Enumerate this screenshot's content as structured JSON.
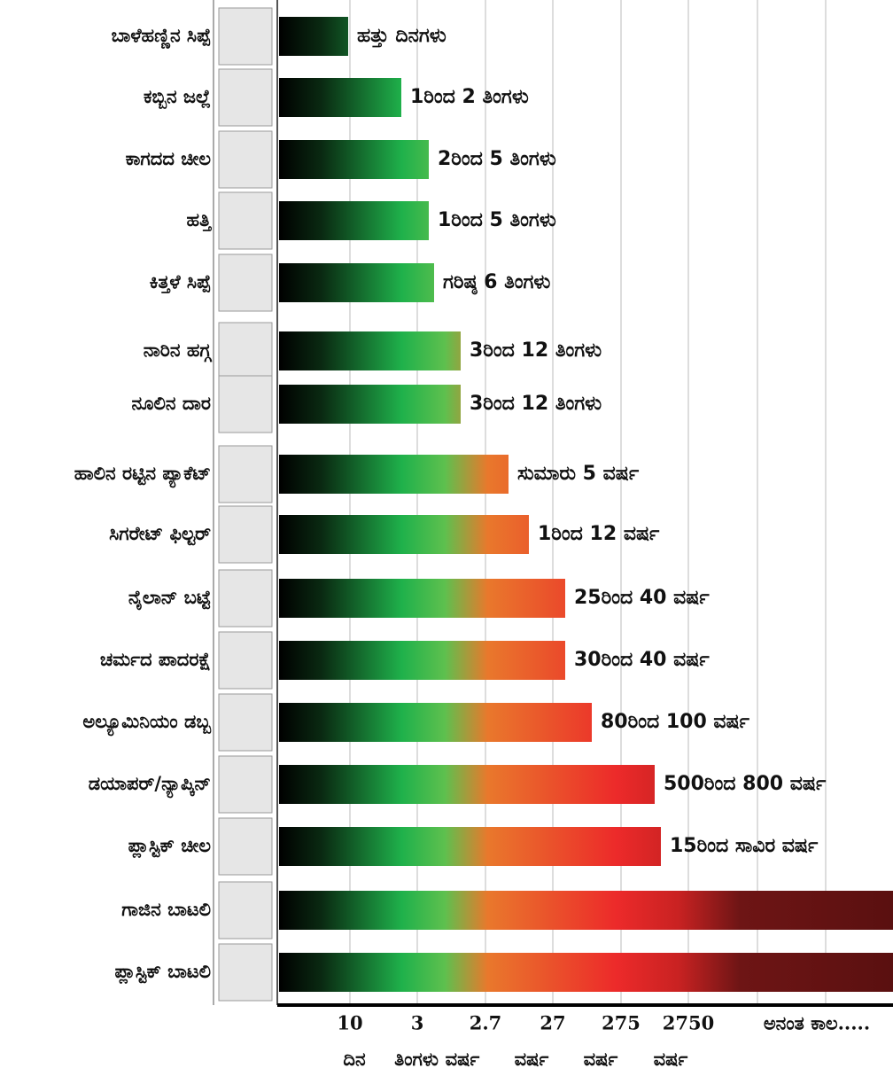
{
  "rows": [
    {
      "label": "ಬಾಳೆಹಣ್ಣಿನ ಸಿಪ್ಪೆ",
      "duration": "ಹತ್ತು ದಿನಗಳು"
    },
    {
      "label": "ಕಬ್ಬಿನ ಜಲ್ಲೆ",
      "duration": "1ರಿಂದ 2 ತಿಂಗಳು"
    },
    {
      "label": "ಕಾಗದದ ಚೀಲ",
      "duration": "2ರಿಂದ 5 ತಿಂಗಳು"
    },
    {
      "label": "ಹತ್ತಿ",
      "duration": "1ರಿಂದ 5 ತಿಂಗಳು"
    },
    {
      "label": "ಕಿತ್ತಳೆ ಸಿಪ್ಪೆ",
      "duration": "ಗರಿಷ್ಠ 6 ತಿಂಗಳು"
    },
    {
      "label": "ನಾರಿನ ಹಗ್ಗ",
      "duration": "3ರಿಂದ 12 ತಿಂಗಳು"
    },
    {
      "label": "ನೂಲಿನ ದಾರ",
      "duration": "3ರಿಂದ 12 ತಿಂಗಳು"
    },
    {
      "label": "ಹಾಲಿನ ರಟ್ಟಿನ ಪ್ಯಾಕೆಟ್",
      "duration": "ಸುಮಾರು 5 ವರ್ಷ"
    },
    {
      "label": "ಸಿಗರೇಟ್ ಫಿಲ್ಟರ್",
      "duration": "1ರಿಂದ 12 ವರ್ಷ"
    },
    {
      "label": "ನೈಲಾನ್ ಬಟ್ಟೆ",
      "duration": "25ರಿಂದ 40 ವರ್ಷ"
    },
    {
      "label": "ಚರ್ಮದ ಪಾದರಕ್ಷೆ",
      "duration": "30ರಿಂದ 40 ವರ್ಷ"
    },
    {
      "label": "ಅಲ್ಯೂಮಿನಿಯಂ ಡಬ್ಬ",
      "duration": "80ರಿಂದ 100 ವರ್ಷ"
    },
    {
      "label": "ಡಯಾಪರ್/ನ್ಯಾಪ್ಕಿನ್",
      "duration": "500ರಿಂದ 800 ವರ್ಷ"
    },
    {
      "label": "ಪ್ಲಾಸ್ಟಿಕ್ ಚೀಲ",
      "duration": "15ರಿಂದ ಸಾವಿರ ವರ್ಷ"
    },
    {
      "label": "ಗಾಜಿನ ಬಾಟಲಿ"
    },
    {
      "label": "ಪ್ಲಾಸ್ಟಿಕ್ ಬಾಟಲಿ"
    }
  ],
  "axis": {
    "ticks": [
      "10",
      "3",
      "2.7",
      "27",
      "275",
      "2750",
      "ಅನಂತ ಕಾಲ....."
    ],
    "units": [
      "ದಿನ",
      "ತಿಂಗಳು",
      "ವರ್ಷ",
      "ವರ್ಷ",
      "ವರ್ಷ",
      "ವರ್ಷ"
    ]
  }
}
